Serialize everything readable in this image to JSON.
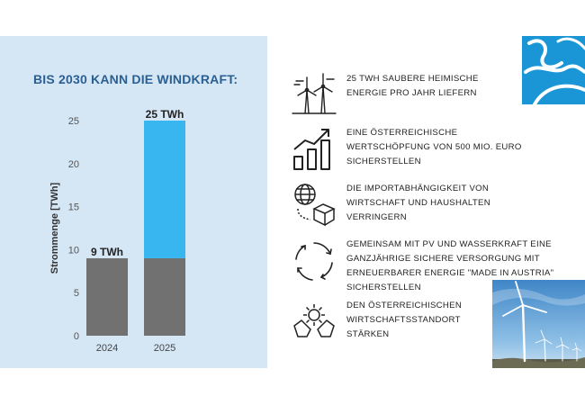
{
  "headline": "BIS 2030 KANN DIE WINDKRAFT:",
  "chart_data": {
    "type": "bar",
    "stacked": true,
    "categories": [
      "2024",
      "2025"
    ],
    "series": [
      {
        "values": [
          9,
          9
        ],
        "color": "#717171"
      },
      {
        "values": [
          0,
          16
        ],
        "color": "#38b6f0"
      }
    ],
    "totals": [
      9,
      25
    ],
    "data_labels": [
      "9 TWh",
      "25 TWh"
    ],
    "ylabel": "Strommenge [TWh]",
    "ylim": [
      0,
      25
    ],
    "yticks": [
      "0",
      "5",
      "10",
      "15",
      "20",
      "25"
    ],
    "grid": false
  },
  "features": [
    {
      "icon": "wind-turbine-icon",
      "lines": [
        "25 TWh saubere heimische",
        "Energie pro Jahr liefern"
      ]
    },
    {
      "icon": "growth-bar-chart-icon",
      "lines": [
        "Eine österreichische",
        "Wertschöpfung von 500 Mio. Euro",
        "sicherstellen"
      ]
    },
    {
      "icon": "globe-package-icon",
      "lines": [
        "Die Importabhängigkeit von",
        "Wirtschaft und Haushalten",
        "verringern"
      ]
    },
    {
      "icon": "cycle-arrows-icon",
      "lines": [
        "Gemeinsam mit PV und Wasserkraft eine",
        "ganzjährige sichere Versorgung mit",
        "erneuerbarer Energie \"Made in Austria\"",
        "sicherstellen"
      ]
    },
    {
      "icon": "hands-gear-icon",
      "lines": [
        " Den österreichischen",
        "Wirtschaftsstandort",
        "stärken"
      ]
    }
  ],
  "colors": {
    "panel": "#d5e6f5",
    "headline": "#2a5f92",
    "logo": "#1a96d6",
    "bar_base": "#717171",
    "bar_growth": "#38b6f0"
  },
  "images": {
    "logo": "wave-logo",
    "photo": "wind-turbines-photo"
  }
}
